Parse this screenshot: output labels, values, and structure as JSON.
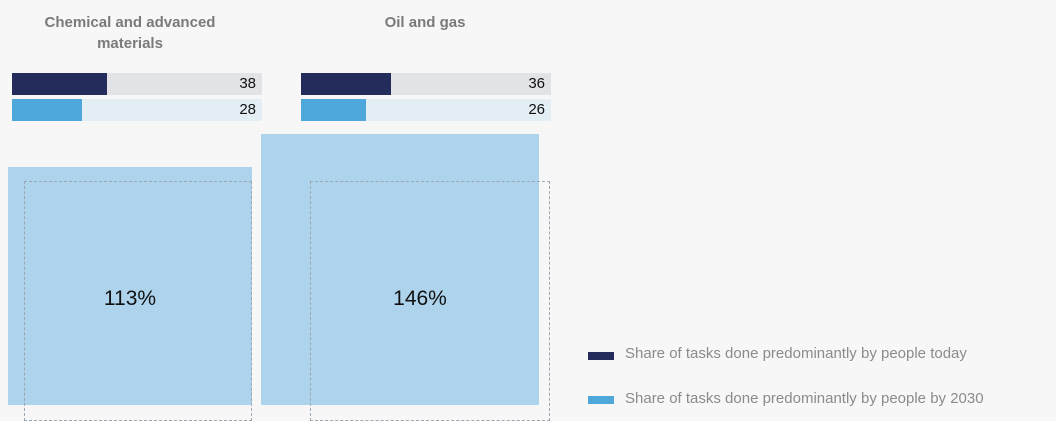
{
  "colors": {
    "today": "#232c5a",
    "by_2030": "#4ea8dc",
    "track_today": "#e2e3e6",
    "track_2030": "#e4eef5",
    "box_fill": "#aed3ec"
  },
  "chart_data": [
    {
      "type": "bar",
      "title": "Chemical and advanced materials",
      "series": [
        {
          "name": "Share of tasks done predominantly by people today",
          "values": [
            38
          ]
        },
        {
          "name": "Share of tasks done predominantly by people by 2030",
          "values": [
            28
          ]
        }
      ],
      "xlim": [
        0,
        100
      ],
      "big_value": 113,
      "big_label": "113%"
    },
    {
      "type": "bar",
      "title": "Oil and gas",
      "series": [
        {
          "name": "Share of tasks done predominantly by people today",
          "values": [
            36
          ]
        },
        {
          "name": "Share of tasks done predominantly by people by 2030",
          "values": [
            26
          ]
        }
      ],
      "xlim": [
        0,
        100
      ],
      "big_value": 146,
      "big_label": "146%"
    }
  ],
  "legend": {
    "today_label": "Share of tasks done predominantly by people today",
    "by_2030_label": "Share of tasks done predominantly by people by 2030"
  }
}
